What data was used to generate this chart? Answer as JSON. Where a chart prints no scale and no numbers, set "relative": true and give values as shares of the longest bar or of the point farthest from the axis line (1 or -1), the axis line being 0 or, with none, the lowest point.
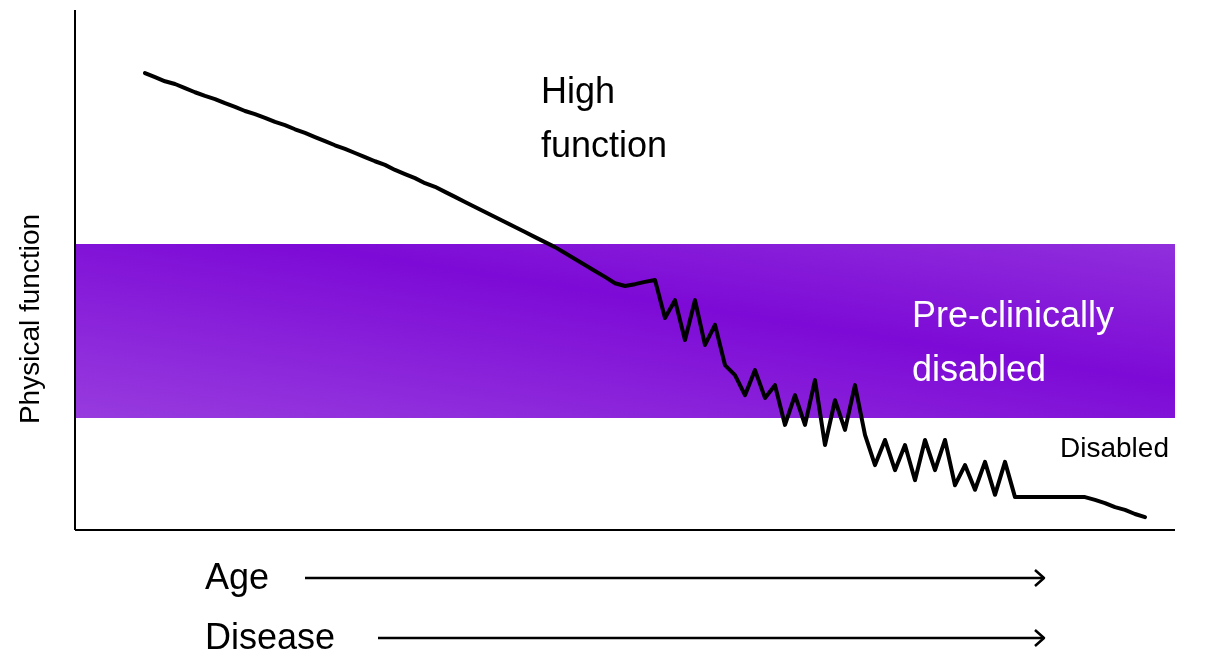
{
  "chart_data": {
    "type": "line",
    "relative": true,
    "ylabel": "Physical function",
    "xlabel": "Age",
    "legend": false,
    "grid": false,
    "marker": "none",
    "line_style": "solid",
    "categories": [
      null,
      null,
      null,
      null,
      null,
      null,
      null,
      null,
      null,
      null,
      null,
      null,
      null,
      null,
      null,
      null,
      null,
      null,
      null,
      null,
      null,
      null,
      null,
      null,
      null,
      null,
      null,
      null,
      null,
      null,
      null,
      null,
      null,
      null,
      null,
      null,
      null,
      null,
      null,
      null,
      null,
      null,
      null,
      null,
      null,
      null,
      null,
      null,
      null,
      null,
      null,
      null,
      null,
      null,
      null,
      null,
      null,
      null,
      null,
      null,
      null,
      null,
      null,
      null,
      null,
      null,
      null,
      null,
      null,
      null,
      null,
      null,
      null,
      null,
      null,
      null,
      null,
      null,
      null,
      null,
      null,
      null,
      null,
      null,
      null,
      null,
      null,
      null,
      null,
      null,
      null,
      null,
      null,
      null,
      null,
      null,
      null,
      null,
      null,
      null,
      null
    ],
    "series": [
      {
        "color": "#000000",
        "values": [
          1.0,
          0.991,
          0.982,
          0.976,
          0.967,
          0.958,
          0.95,
          0.943,
          0.934,
          0.926,
          0.917,
          0.91,
          0.902,
          0.893,
          0.886,
          0.877,
          0.869,
          0.86,
          0.851,
          0.842,
          0.834,
          0.825,
          0.816,
          0.807,
          0.799,
          0.788,
          0.779,
          0.77,
          0.759,
          0.751,
          0.74,
          0.729,
          0.718,
          0.707,
          0.696,
          0.685,
          0.674,
          0.663,
          0.652,
          0.641,
          0.63,
          0.619,
          0.606,
          0.593,
          0.58,
          0.567,
          0.554,
          0.54,
          0.534,
          0.538,
          0.543,
          0.547,
          0.464,
          0.503,
          0.416,
          0.503,
          0.405,
          0.449,
          0.361,
          0.339,
          0.295,
          0.35,
          0.289,
          0.317,
          0.23,
          0.295,
          0.23,
          0.328,
          0.186,
          0.284,
          0.219,
          0.317,
          0.208,
          0.142,
          0.197,
          0.131,
          0.186,
          0.109,
          0.197,
          0.131,
          0.197,
          0.098,
          0.142,
          0.088,
          0.149,
          0.077,
          0.149,
          0.072,
          0.072,
          0.072,
          0.072,
          0.072,
          0.072,
          0.072,
          0.072,
          0.066,
          0.059,
          0.05,
          0.044,
          0.035,
          0.028
        ]
      }
    ],
    "bands": [
      {
        "axis": "y",
        "from": 0.245,
        "to": 0.626,
        "label": "Pre-clinically disabled",
        "color": "#7d0ad6"
      }
    ],
    "annotations": [
      "High function",
      "Disabled",
      "Disease"
    ]
  }
}
